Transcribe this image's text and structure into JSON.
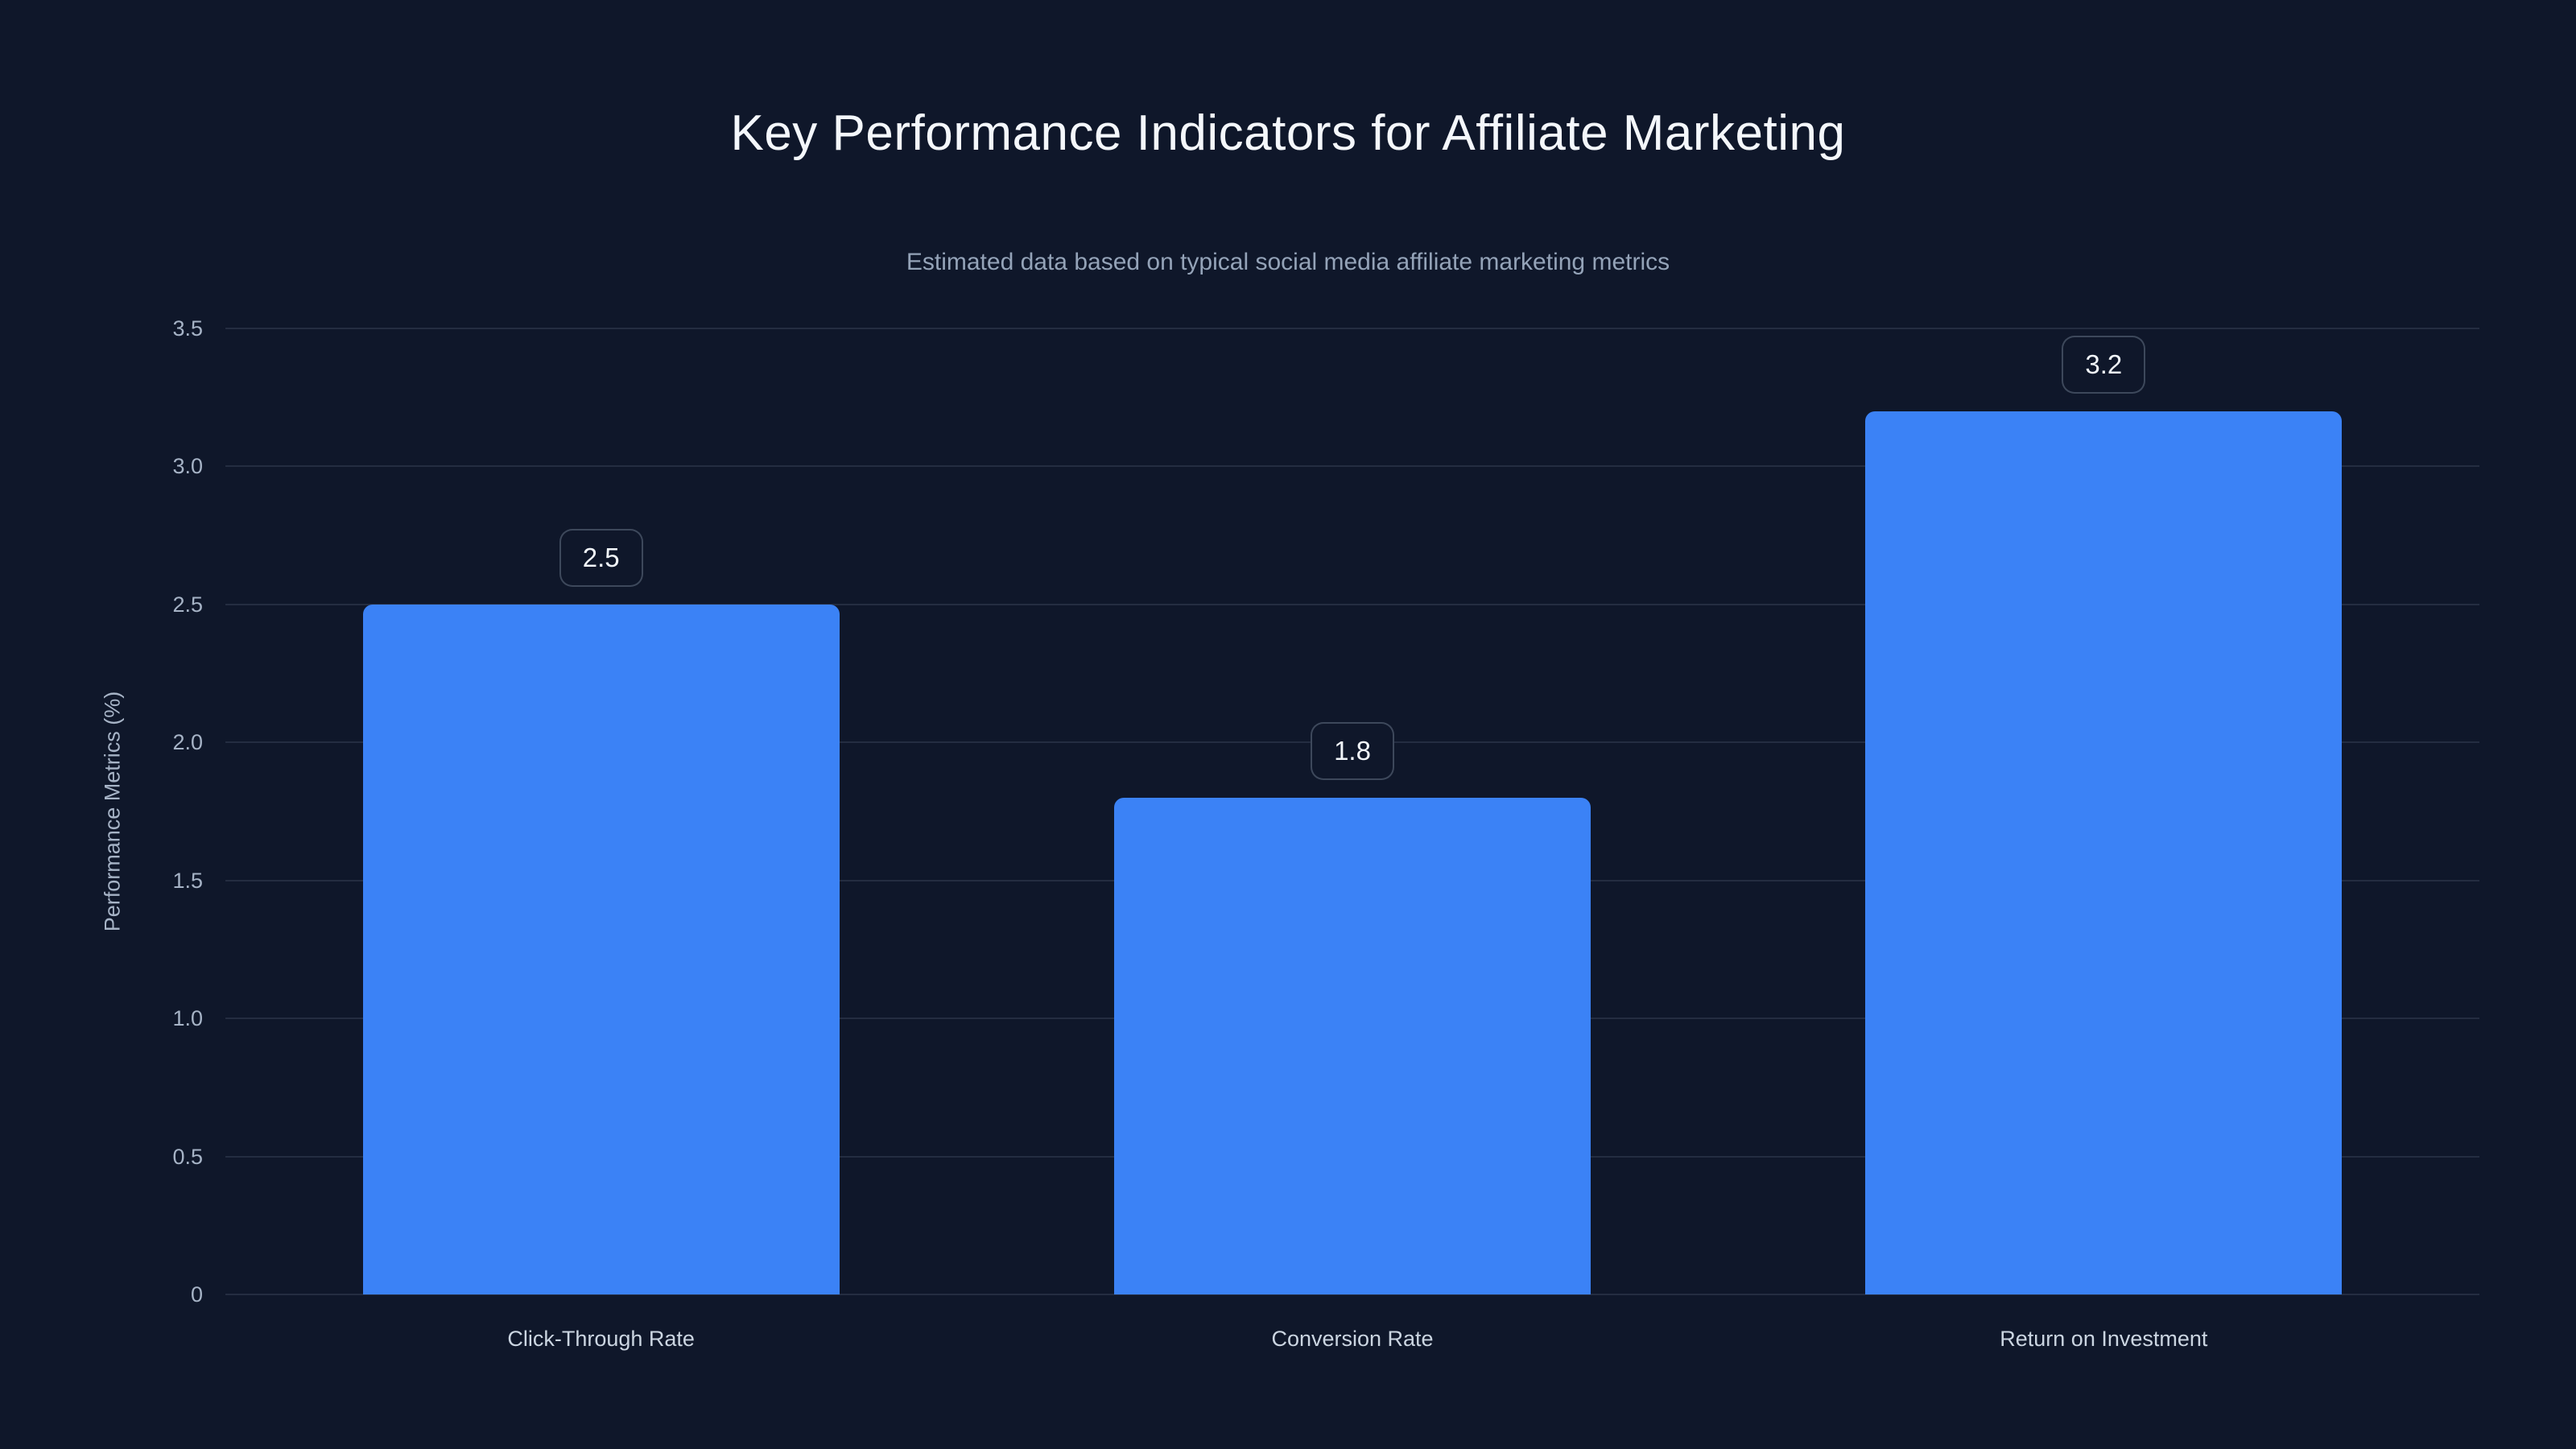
{
  "chart_data": {
    "type": "bar",
    "title": "Key Performance Indicators for Affiliate Marketing",
    "subtitle": "Estimated data based on typical social media affiliate marketing metrics",
    "ylabel": "Performance Metrics (%)",
    "xlabel": "",
    "categories": [
      "Click-Through Rate",
      "Conversion Rate",
      "Return on Investment"
    ],
    "values": [
      2.5,
      1.8,
      3.2
    ],
    "value_labels": [
      "2.5",
      "1.8",
      "3.2"
    ],
    "ytick_labels": [
      "0",
      "0.5",
      "1.0",
      "1.5",
      "2.0",
      "2.5",
      "3.0",
      "3.5"
    ],
    "yticks": [
      0,
      0.5,
      1.0,
      1.5,
      2.0,
      2.5,
      3.0,
      3.5
    ],
    "ylim": [
      0,
      3.5
    ],
    "grid": true,
    "legend": false,
    "colors": {
      "background": "#0f172a",
      "bar": "#3b82f6",
      "title": "#f4f7fb",
      "subtitle": "#94a3b8",
      "tick_label": "#a6b3c6",
      "axis_label": "#a6b3c6",
      "category_label": "#cbd5e1",
      "gridline": "rgba(148,163,184,0.16)",
      "value_badge_text": "#f1f5f9",
      "value_badge_border": "rgba(148,163,184,0.35)"
    }
  }
}
